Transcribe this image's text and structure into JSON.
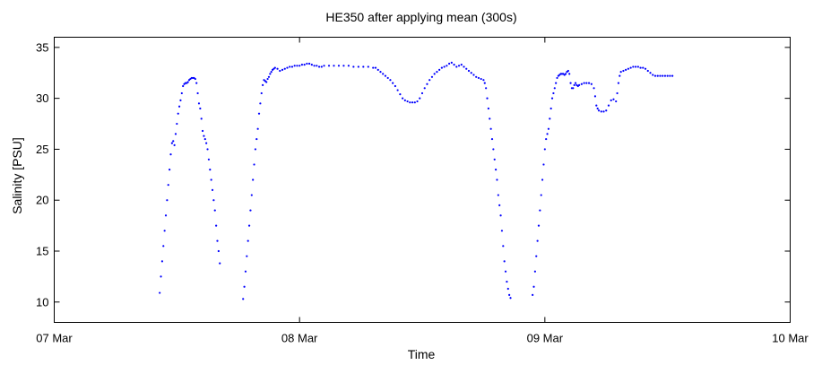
{
  "chart_data": {
    "type": "scatter",
    "title": "HE350 after applying mean (300s)",
    "xlabel": "Time",
    "ylabel": "Salinity [PSU]",
    "x_unit": "days since 07 Mar 00:00",
    "xlim": [
      0,
      3
    ],
    "ylim": [
      8,
      36
    ],
    "x_tick_values": [
      0,
      1,
      2,
      3
    ],
    "x_tick_labels": [
      "07 Mar",
      "08 Mar",
      "09 Mar",
      "10 Mar"
    ],
    "y_ticks": [
      10,
      15,
      20,
      25,
      30,
      35
    ],
    "grid": false,
    "marker_color": "#0000ff",
    "series": [
      {
        "name": "",
        "points": [
          [
            0.43,
            10.9
          ],
          [
            0.435,
            12.5
          ],
          [
            0.44,
            14
          ],
          [
            0.445,
            15.5
          ],
          [
            0.45,
            17
          ],
          [
            0.455,
            18.5
          ],
          [
            0.46,
            20
          ],
          [
            0.465,
            21.5
          ],
          [
            0.47,
            23
          ],
          [
            0.475,
            24.5
          ],
          [
            0.48,
            25.6
          ],
          [
            0.485,
            25.8
          ],
          [
            0.49,
            25.4
          ],
          [
            0.495,
            26.5
          ],
          [
            0.5,
            27.5
          ],
          [
            0.505,
            28.5
          ],
          [
            0.51,
            29.2
          ],
          [
            0.515,
            29.8
          ],
          [
            0.52,
            30.5
          ],
          [
            0.525,
            31.2
          ],
          [
            0.53,
            31.4
          ],
          [
            0.535,
            31.5
          ],
          [
            0.54,
            31.5
          ],
          [
            0.545,
            31.6
          ],
          [
            0.55,
            31.8
          ],
          [
            0.555,
            31.9
          ],
          [
            0.56,
            32
          ],
          [
            0.565,
            32
          ],
          [
            0.57,
            32
          ],
          [
            0.575,
            31.9
          ],
          [
            0.58,
            31.5
          ],
          [
            0.585,
            30.5
          ],
          [
            0.59,
            29.5
          ],
          [
            0.595,
            29
          ],
          [
            0.6,
            28
          ],
          [
            0.605,
            26.8
          ],
          [
            0.61,
            26.3
          ],
          [
            0.615,
            26
          ],
          [
            0.62,
            25.6
          ],
          [
            0.625,
            25
          ],
          [
            0.63,
            24
          ],
          [
            0.635,
            23
          ],
          [
            0.64,
            22
          ],
          [
            0.645,
            21
          ],
          [
            0.65,
            20
          ],
          [
            0.655,
            19
          ],
          [
            0.66,
            17.5
          ],
          [
            0.665,
            16
          ],
          [
            0.67,
            15
          ],
          [
            0.675,
            13.8
          ],
          [
            0.77,
            10.3
          ],
          [
            0.775,
            11.5
          ],
          [
            0.78,
            13
          ],
          [
            0.785,
            14.5
          ],
          [
            0.79,
            16
          ],
          [
            0.795,
            17.5
          ],
          [
            0.8,
            19
          ],
          [
            0.805,
            20.5
          ],
          [
            0.81,
            22
          ],
          [
            0.815,
            23.5
          ],
          [
            0.82,
            25
          ],
          [
            0.825,
            26
          ],
          [
            0.83,
            27
          ],
          [
            0.835,
            28.5
          ],
          [
            0.84,
            29.5
          ],
          [
            0.845,
            30.5
          ],
          [
            0.85,
            31.3
          ],
          [
            0.855,
            31.8
          ],
          [
            0.86,
            31.7
          ],
          [
            0.865,
            31.6
          ],
          [
            0.87,
            31.9
          ],
          [
            0.875,
            32.1
          ],
          [
            0.88,
            32.4
          ],
          [
            0.885,
            32.6
          ],
          [
            0.89,
            32.8
          ],
          [
            0.895,
            32.9
          ],
          [
            0.9,
            33
          ],
          [
            0.91,
            32.9
          ],
          [
            0.92,
            32.7
          ],
          [
            0.93,
            32.8
          ],
          [
            0.94,
            32.9
          ],
          [
            0.95,
            33
          ],
          [
            0.96,
            33.1
          ],
          [
            0.97,
            33.1
          ],
          [
            0.98,
            33.2
          ],
          [
            0.99,
            33.2
          ],
          [
            1.0,
            33.2
          ],
          [
            1.01,
            33.3
          ],
          [
            1.02,
            33.3
          ],
          [
            1.03,
            33.4
          ],
          [
            1.04,
            33.4
          ],
          [
            1.05,
            33.3
          ],
          [
            1.06,
            33.2
          ],
          [
            1.07,
            33.2
          ],
          [
            1.08,
            33.1
          ],
          [
            1.09,
            33.1
          ],
          [
            1.1,
            33.2
          ],
          [
            1.12,
            33.2
          ],
          [
            1.14,
            33.2
          ],
          [
            1.16,
            33.2
          ],
          [
            1.18,
            33.2
          ],
          [
            1.2,
            33.2
          ],
          [
            1.22,
            33.1
          ],
          [
            1.24,
            33.1
          ],
          [
            1.26,
            33.1
          ],
          [
            1.28,
            33.1
          ],
          [
            1.3,
            33
          ],
          [
            1.31,
            33
          ],
          [
            1.32,
            32.8
          ],
          [
            1.33,
            32.6
          ],
          [
            1.34,
            32.4
          ],
          [
            1.35,
            32.2
          ],
          [
            1.36,
            32
          ],
          [
            1.37,
            31.8
          ],
          [
            1.38,
            31.5
          ],
          [
            1.39,
            31.2
          ],
          [
            1.4,
            30.8
          ],
          [
            1.41,
            30.4
          ],
          [
            1.42,
            30
          ],
          [
            1.43,
            29.8
          ],
          [
            1.44,
            29.7
          ],
          [
            1.45,
            29.6
          ],
          [
            1.46,
            29.6
          ],
          [
            1.47,
            29.6
          ],
          [
            1.48,
            29.7
          ],
          [
            1.49,
            30
          ],
          [
            1.5,
            30.5
          ],
          [
            1.51,
            31
          ],
          [
            1.52,
            31.4
          ],
          [
            1.53,
            31.8
          ],
          [
            1.54,
            32.1
          ],
          [
            1.55,
            32.4
          ],
          [
            1.56,
            32.6
          ],
          [
            1.57,
            32.8
          ],
          [
            1.58,
            33
          ],
          [
            1.59,
            33.1
          ],
          [
            1.6,
            33.2
          ],
          [
            1.61,
            33.4
          ],
          [
            1.62,
            33.5
          ],
          [
            1.63,
            33.3
          ],
          [
            1.64,
            33.1
          ],
          [
            1.65,
            33.2
          ],
          [
            1.66,
            33.3
          ],
          [
            1.67,
            33.1
          ],
          [
            1.68,
            32.9
          ],
          [
            1.69,
            32.7
          ],
          [
            1.7,
            32.5
          ],
          [
            1.71,
            32.3
          ],
          [
            1.72,
            32.1
          ],
          [
            1.73,
            32
          ],
          [
            1.74,
            31.9
          ],
          [
            1.75,
            31.8
          ],
          [
            1.755,
            31.5
          ],
          [
            1.76,
            31
          ],
          [
            1.765,
            30
          ],
          [
            1.77,
            29
          ],
          [
            1.775,
            28
          ],
          [
            1.78,
            27
          ],
          [
            1.785,
            26
          ],
          [
            1.79,
            25
          ],
          [
            1.795,
            24
          ],
          [
            1.8,
            23
          ],
          [
            1.805,
            22
          ],
          [
            1.81,
            20.5
          ],
          [
            1.815,
            19.5
          ],
          [
            1.82,
            18.5
          ],
          [
            1.825,
            17
          ],
          [
            1.83,
            15.5
          ],
          [
            1.835,
            14
          ],
          [
            1.84,
            13
          ],
          [
            1.845,
            12
          ],
          [
            1.85,
            11.3
          ],
          [
            1.855,
            10.7
          ],
          [
            1.86,
            10.4
          ],
          [
            1.95,
            10.7
          ],
          [
            1.955,
            11.5
          ],
          [
            1.96,
            13
          ],
          [
            1.965,
            14.5
          ],
          [
            1.97,
            16
          ],
          [
            1.975,
            17.5
          ],
          [
            1.98,
            19
          ],
          [
            1.985,
            20.5
          ],
          [
            1.99,
            22
          ],
          [
            1.995,
            23.5
          ],
          [
            2.0,
            25
          ],
          [
            2.005,
            26
          ],
          [
            2.01,
            26.5
          ],
          [
            2.015,
            27
          ],
          [
            2.02,
            28
          ],
          [
            2.025,
            29
          ],
          [
            2.03,
            30
          ],
          [
            2.035,
            30.5
          ],
          [
            2.04,
            31
          ],
          [
            2.045,
            31.5
          ],
          [
            2.05,
            32
          ],
          [
            2.055,
            32.2
          ],
          [
            2.06,
            32.3
          ],
          [
            2.065,
            32.4
          ],
          [
            2.07,
            32.4
          ],
          [
            2.075,
            32.4
          ],
          [
            2.08,
            32.3
          ],
          [
            2.085,
            32.4
          ],
          [
            2.09,
            32.6
          ],
          [
            2.095,
            32.7
          ],
          [
            2.1,
            32.4
          ],
          [
            2.105,
            31.5
          ],
          [
            2.11,
            31
          ],
          [
            2.115,
            31
          ],
          [
            2.12,
            31.3
          ],
          [
            2.125,
            31.5
          ],
          [
            2.13,
            31.3
          ],
          [
            2.135,
            31.2
          ],
          [
            2.14,
            31.3
          ],
          [
            2.15,
            31.4
          ],
          [
            2.16,
            31.5
          ],
          [
            2.17,
            31.5
          ],
          [
            2.18,
            31.5
          ],
          [
            2.19,
            31.4
          ],
          [
            2.2,
            31
          ],
          [
            2.205,
            30.2
          ],
          [
            2.21,
            29.3
          ],
          [
            2.215,
            29
          ],
          [
            2.22,
            28.8
          ],
          [
            2.23,
            28.7
          ],
          [
            2.24,
            28.7
          ],
          [
            2.25,
            28.8
          ],
          [
            2.26,
            29.3
          ],
          [
            2.27,
            29.8
          ],
          [
            2.28,
            29.9
          ],
          [
            2.29,
            29.7
          ],
          [
            2.295,
            30.5
          ],
          [
            2.3,
            31.5
          ],
          [
            2.305,
            32.2
          ],
          [
            2.31,
            32.6
          ],
          [
            2.32,
            32.7
          ],
          [
            2.33,
            32.8
          ],
          [
            2.34,
            32.9
          ],
          [
            2.35,
            33
          ],
          [
            2.36,
            33.1
          ],
          [
            2.37,
            33.1
          ],
          [
            2.38,
            33.1
          ],
          [
            2.39,
            33
          ],
          [
            2.4,
            33
          ],
          [
            2.41,
            32.9
          ],
          [
            2.42,
            32.7
          ],
          [
            2.43,
            32.5
          ],
          [
            2.44,
            32.3
          ],
          [
            2.45,
            32.2
          ],
          [
            2.46,
            32.2
          ],
          [
            2.47,
            32.2
          ],
          [
            2.48,
            32.2
          ],
          [
            2.49,
            32.2
          ],
          [
            2.5,
            32.2
          ],
          [
            2.51,
            32.2
          ],
          [
            2.52,
            32.2
          ]
        ]
      }
    ]
  }
}
